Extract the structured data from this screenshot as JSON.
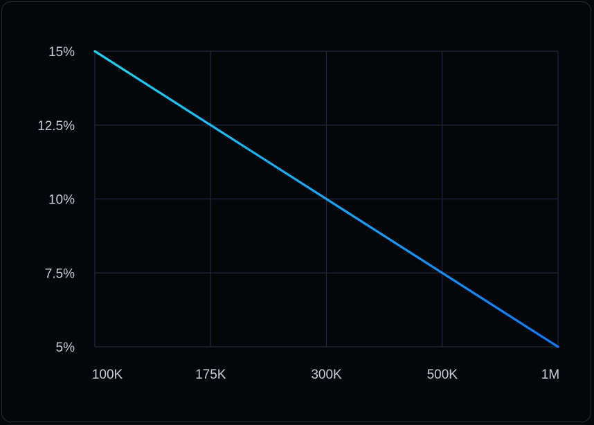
{
  "chart_data": {
    "type": "line",
    "x_scale": "categorical",
    "categories": [
      "100K",
      "175K",
      "300K",
      "500K",
      "1M"
    ],
    "y_ticks": [
      "15%",
      "12.5%",
      "10%",
      "7.5%",
      "5%"
    ],
    "y_tick_values": [
      15,
      12.5,
      10,
      7.5,
      5
    ],
    "ylim": [
      5,
      15
    ],
    "series": [
      {
        "values": [
          15,
          12.5,
          10,
          7.5,
          5
        ]
      }
    ],
    "grid": true,
    "colors": {
      "line_start": "#1fd3f2",
      "line_end": "#1278ff",
      "grid": "#23293a",
      "tick_text": "#c9ced8",
      "background": "#04060a"
    }
  }
}
